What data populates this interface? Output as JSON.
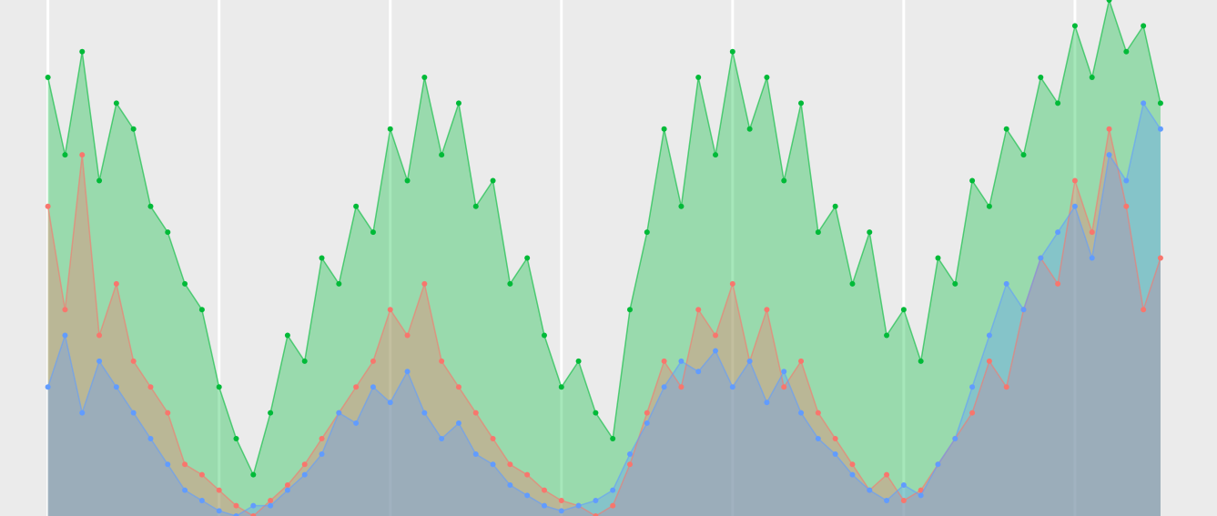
{
  "chart_data": {
    "type": "area",
    "x": [
      0,
      10,
      20,
      30,
      40,
      50,
      60,
      70,
      80,
      90,
      100,
      110,
      120,
      130,
      140,
      150,
      160,
      170,
      180,
      190,
      200,
      210,
      220,
      230,
      240,
      250,
      260,
      270,
      280,
      290,
      300,
      310,
      320,
      330,
      340,
      350,
      360,
      370,
      380,
      390,
      400,
      410,
      420,
      430,
      440,
      450,
      460,
      470,
      480,
      490,
      500,
      510,
      520,
      530,
      540,
      550,
      560,
      570,
      580,
      590,
      600,
      610,
      620,
      630,
      640,
      650
    ],
    "series": [
      {
        "color": "#00ba38",
        "values": [
          85,
          70,
          90,
          65,
          80,
          75,
          60,
          55,
          45,
          40,
          25,
          15,
          8,
          20,
          35,
          30,
          50,
          45,
          60,
          55,
          75,
          65,
          85,
          70,
          80,
          60,
          65,
          45,
          50,
          35,
          25,
          30,
          20,
          15,
          40,
          55,
          75,
          60,
          85,
          70,
          90,
          75,
          85,
          65,
          80,
          55,
          60,
          45,
          55,
          35,
          40,
          30,
          50,
          45,
          65,
          60,
          75,
          70,
          85,
          80,
          95,
          85,
          100,
          90,
          95,
          80
        ]
      },
      {
        "color": "#f8766d",
        "values": [
          60,
          40,
          70,
          35,
          45,
          30,
          25,
          20,
          10,
          8,
          5,
          2,
          0,
          3,
          6,
          10,
          15,
          20,
          25,
          30,
          40,
          35,
          45,
          30,
          25,
          20,
          15,
          10,
          8,
          5,
          3,
          2,
          0,
          2,
          10,
          20,
          30,
          25,
          40,
          35,
          45,
          30,
          40,
          25,
          30,
          20,
          15,
          10,
          5,
          8,
          3,
          5,
          10,
          15,
          20,
          30,
          25,
          40,
          50,
          45,
          65,
          55,
          75,
          60,
          40,
          50
        ]
      },
      {
        "color": "#619cff",
        "values": [
          25,
          35,
          20,
          30,
          25,
          20,
          15,
          10,
          5,
          3,
          1,
          0,
          2,
          2,
          5,
          8,
          12,
          20,
          18,
          25,
          22,
          28,
          20,
          15,
          18,
          12,
          10,
          6,
          4,
          2,
          1,
          2,
          3,
          5,
          12,
          18,
          25,
          30,
          28,
          32,
          25,
          30,
          22,
          28,
          20,
          15,
          12,
          8,
          5,
          3,
          6,
          4,
          10,
          15,
          25,
          35,
          45,
          40,
          50,
          55,
          60,
          50,
          70,
          65,
          80,
          75
        ]
      }
    ],
    "xlim": [
      -28,
      683
    ],
    "ylim": [
      0,
      100
    ],
    "xticks": [
      0,
      100,
      200,
      300,
      400,
      500,
      600
    ],
    "grid": true
  }
}
